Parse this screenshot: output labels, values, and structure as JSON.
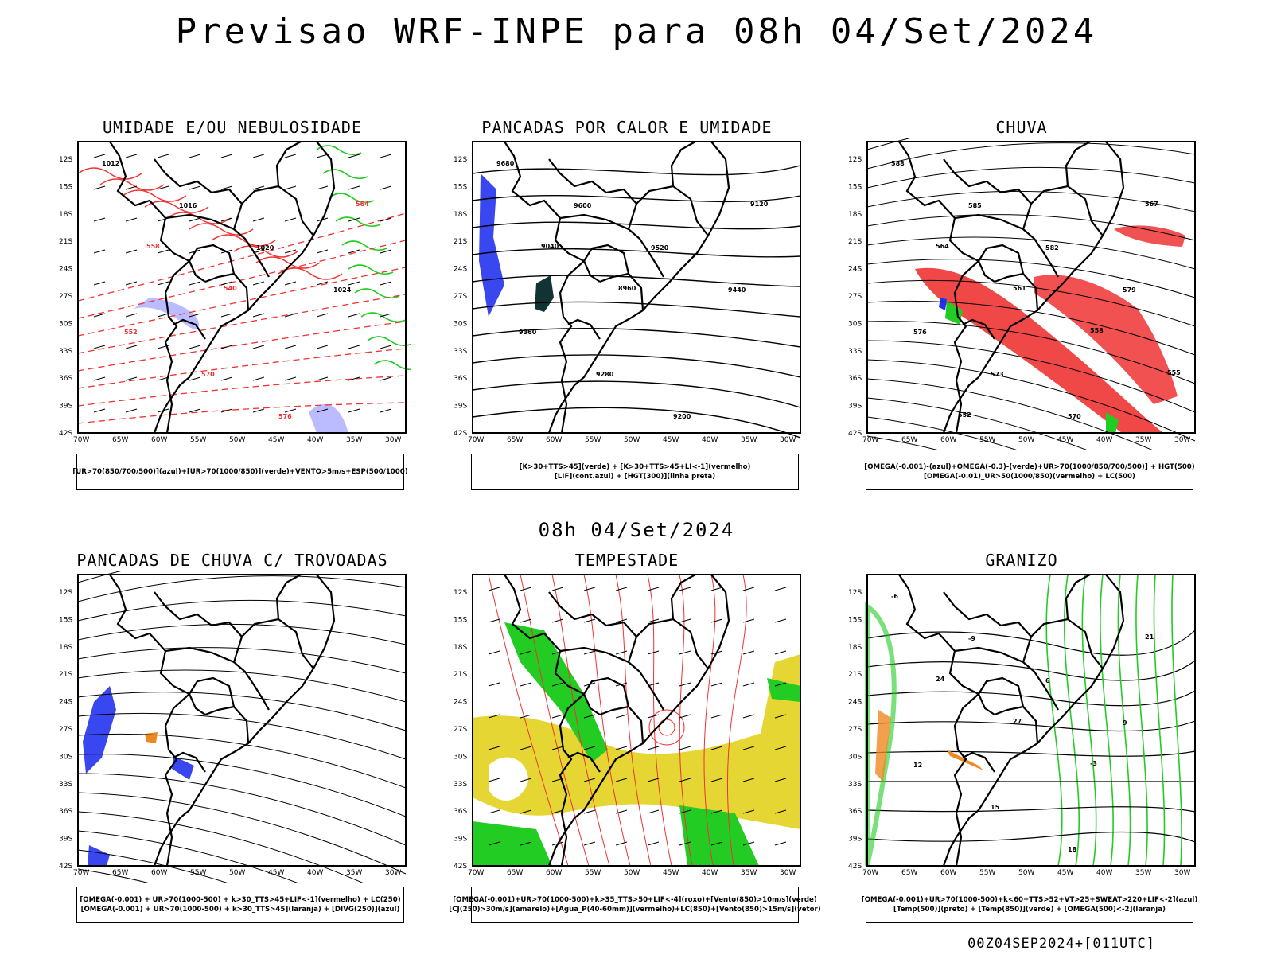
{
  "title": "Previsao WRF-INPE  para 08h 04/Set/2024",
  "mid_title": "08h 04/Set/2024",
  "footer": "00Z04SEP2024+[011UTC]",
  "lat_labels": [
    "12S",
    "15S",
    "18S",
    "21S",
    "24S",
    "27S",
    "30S",
    "33S",
    "36S",
    "39S",
    "42S"
  ],
  "lon_labels": [
    "70W",
    "65W",
    "60W",
    "55W",
    "50W",
    "45W",
    "40W",
    "35W",
    "30W"
  ],
  "colors": {
    "blue": "#2233ee",
    "green": "#22cc22",
    "red": "#ee3333",
    "orange": "#ee8822",
    "yellow": "#e5d633",
    "purple": "#aaaaff",
    "dark": "#113333"
  },
  "panels": [
    {
      "id": "umidade",
      "title": "UMIDADE E/OU NEBULOSIDADE",
      "legend": [
        "[UR>70(850/700/500)](azul)+[UR>70(1000/850)](verde)+VENTO>5m/s+ESP(500/1000)"
      ],
      "contour_labels": [
        "1012",
        "1016",
        "1020",
        "1024",
        "552",
        "570",
        "576",
        "564",
        "558",
        "540"
      ]
    },
    {
      "id": "pancadas",
      "title": "PANCADAS POR CALOR E UMIDADE",
      "legend": [
        "[K>30+TTS>45](verde) + [K>30+TTS>45+LI<-1](vermelho)",
        "[LIF](cont.azul) + [HGT(300)](linha preta)"
      ],
      "contour_labels": [
        "9680",
        "9600",
        "9520",
        "9440",
        "9360",
        "9280",
        "9200",
        "9120",
        "9040",
        "8960"
      ]
    },
    {
      "id": "chuva",
      "title": "CHUVA",
      "legend": [
        "[OMEGA(-0.001)-(azul)+OMEGA(-0.3)-(verde)+UR>70(1000/850/700/500)] + HGT(500)",
        "[OMEGA(-0.01)_UR>50(1000/850)(vermelho) + LC(500)"
      ],
      "contour_labels": [
        "588",
        "585",
        "582",
        "579",
        "576",
        "573",
        "570",
        "567",
        "564",
        "561",
        "558",
        "555",
        "552"
      ]
    },
    {
      "id": "trovoadas",
      "title": "PANCADAS DE CHUVA C/ TROVOADAS",
      "legend": [
        "[OMEGA(-0.001) + UR>70(1000-500) + k>30_TTS>45+LIF<-1](vermelho) + LC(250)",
        "[OMEGA(-0.001) + UR>70(1000-500) + k>30_TTS>45](laranja) + [DIVG(250)](azul)"
      ],
      "contour_labels": []
    },
    {
      "id": "tempestade",
      "title": "TEMPESTADE",
      "legend": [
        "[OMEGA(-0.001)+UR>70(1000-500)+k>35_TTS>50+LIF<-4](roxo)+[Vento(850)>10m/s](verde)",
        "[CJ(250)>30m/s](amarelo)+[Agua_P(40-60mm)](vermelho)+LC(850)+[Vento(850)>15m/s](vetor)"
      ],
      "contour_labels": []
    },
    {
      "id": "granizo",
      "title": "GRANIZO",
      "legend": [
        "[OMEGA(-0.001)+UR>70(1000-500)+k<60+TTS>52+VT>25+SWEAT>220+LIF<-2](azul)",
        "[Temp(500)](preto) + [Temp(850)](verde) + [OMEGA(500)<-2](laranja)"
      ],
      "contour_labels": [
        "-6",
        "-9",
        "6",
        "9",
        "12",
        "15",
        "18",
        "21",
        "24",
        "27",
        "-3"
      ]
    }
  ]
}
